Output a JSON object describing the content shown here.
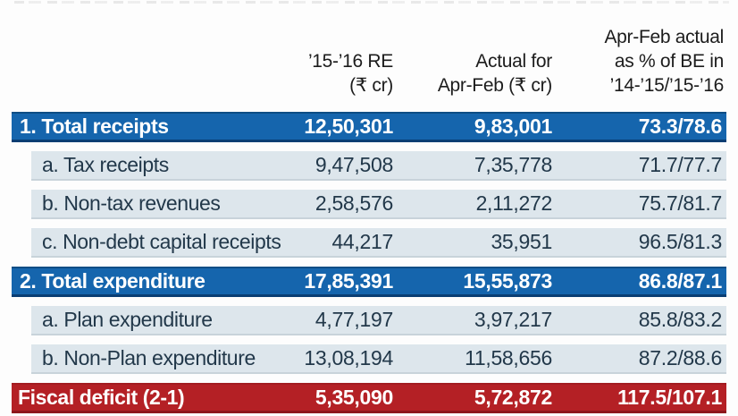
{
  "colors": {
    "accent_blue": "#1565ad",
    "accent_blue_dark": "#0a3e73",
    "accent_red": "#b42025",
    "accent_red_dark": "#8e161b",
    "sub_row_bg": "#dde6ec",
    "text_dark": "#22384a"
  },
  "table": {
    "header": {
      "re_line1": "’15-’16 RE",
      "re_line2": "(₹ cr)",
      "actual_line1": "Actual for",
      "actual_line2": "Apr-Feb (₹ cr)",
      "pct_line1": "Apr-Feb actual",
      "pct_line2": "as % of BE in",
      "pct_line3": "’14-’15/’15-’16"
    },
    "rows": [
      {
        "label": "1. Total receipts",
        "re": "12,50,301",
        "actual": "9,83,001",
        "pct": "73.3/78.6"
      },
      {
        "label": "a. Tax receipts",
        "re": "9,47,508",
        "actual": "7,35,778",
        "pct": "71.7/77.7"
      },
      {
        "label": "b. Non-tax revenues",
        "re": "2,58,576",
        "actual": "2,11,272",
        "pct": "75.7/81.7"
      },
      {
        "label": "c. Non-debt capital receipts",
        "re": "44,217",
        "actual": "35,951",
        "pct": "96.5/81.3"
      },
      {
        "label": "2. Total expenditure",
        "re": "17,85,391",
        "actual": "15,55,873",
        "pct": "86.8/87.1"
      },
      {
        "label": "a. Plan expenditure",
        "re": "4,77,197",
        "actual": "3,97,217",
        "pct": "85.8/83.2"
      },
      {
        "label": "b. Non-Plan expenditure",
        "re": "13,08,194",
        "actual": "11,58,656",
        "pct": "87.2/88.6"
      },
      {
        "label": "Fiscal deficit (2-1)",
        "re": "5,35,090",
        "actual": "5,72,872",
        "pct": "117.5/107.1"
      }
    ]
  },
  "chart_data": {
    "type": "table",
    "columns": [
      "",
      "’15-’16 RE (₹ cr)",
      "Actual for Apr-Feb (₹ cr)",
      "Apr-Feb actual as % of BE in ’14-’15/’15-’16"
    ],
    "rows": [
      {
        "label": "1. Total receipts",
        "re_15_16_cr": 1250301,
        "actual_apr_feb_cr": 983001,
        "pct_of_be_14_15": 73.3,
        "pct_of_be_15_16": 78.6,
        "emphasis": "blue"
      },
      {
        "label": "a. Tax receipts",
        "re_15_16_cr": 947508,
        "actual_apr_feb_cr": 735778,
        "pct_of_be_14_15": 71.7,
        "pct_of_be_15_16": 77.7,
        "emphasis": "none"
      },
      {
        "label": "b. Non-tax revenues",
        "re_15_16_cr": 258576,
        "actual_apr_feb_cr": 211272,
        "pct_of_be_14_15": 75.7,
        "pct_of_be_15_16": 81.7,
        "emphasis": "none"
      },
      {
        "label": "c. Non-debt capital receipts",
        "re_15_16_cr": 44217,
        "actual_apr_feb_cr": 35951,
        "pct_of_be_14_15": 96.5,
        "pct_of_be_15_16": 81.3,
        "emphasis": "none"
      },
      {
        "label": "2. Total expenditure",
        "re_15_16_cr": 1785391,
        "actual_apr_feb_cr": 1555873,
        "pct_of_be_14_15": 86.8,
        "pct_of_be_15_16": 87.1,
        "emphasis": "blue"
      },
      {
        "label": "a. Plan expenditure",
        "re_15_16_cr": 477197,
        "actual_apr_feb_cr": 397217,
        "pct_of_be_14_15": 85.8,
        "pct_of_be_15_16": 83.2,
        "emphasis": "none"
      },
      {
        "label": "b. Non-Plan expenditure",
        "re_15_16_cr": 1308194,
        "actual_apr_feb_cr": 1158656,
        "pct_of_be_14_15": 87.2,
        "pct_of_be_15_16": 88.6,
        "emphasis": "none"
      },
      {
        "label": "Fiscal deficit (2-1)",
        "re_15_16_cr": 535090,
        "actual_apr_feb_cr": 572872,
        "pct_of_be_14_15": 117.5,
        "pct_of_be_15_16": 107.1,
        "emphasis": "red"
      }
    ]
  }
}
